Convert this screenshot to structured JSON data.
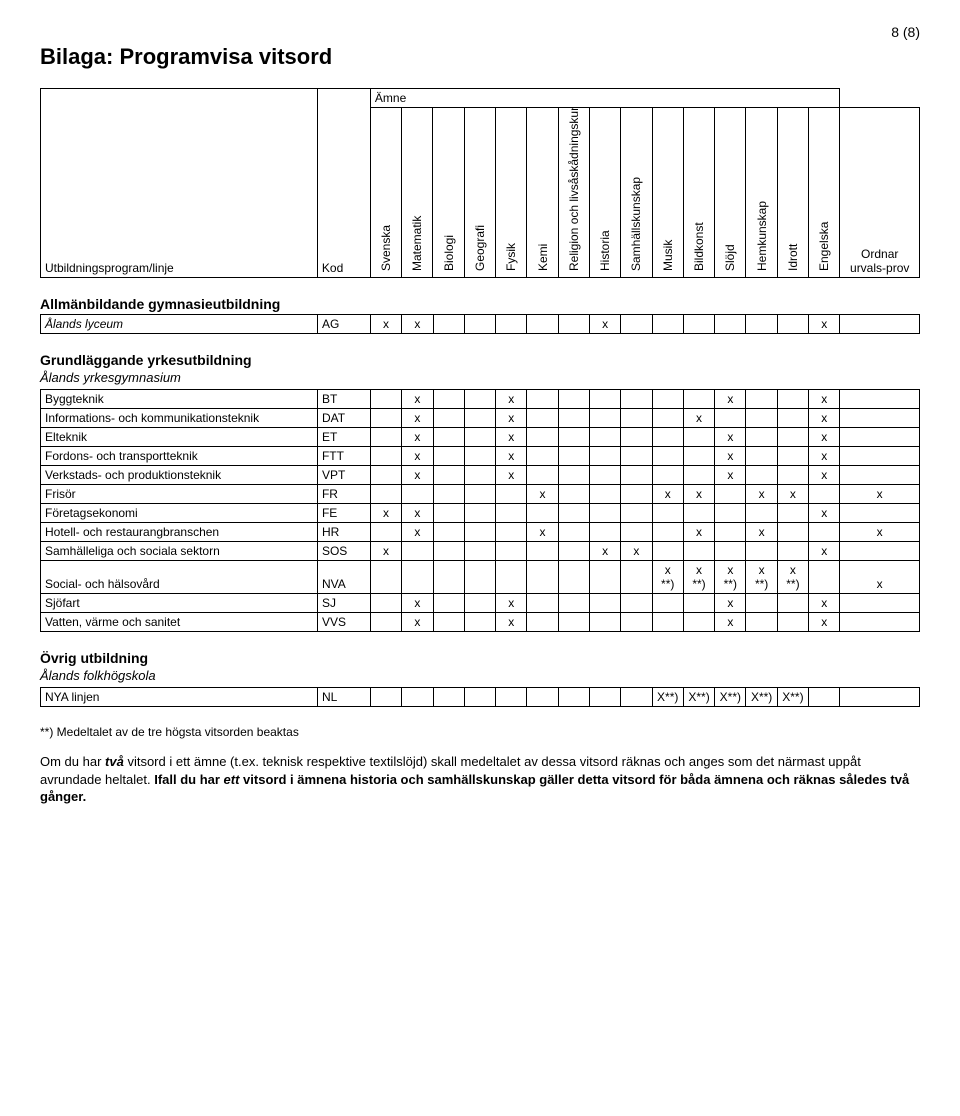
{
  "page_number": "8 (8)",
  "title": "Bilaga: Programvisa vitsord",
  "header": {
    "program_label": "Utbildningsprogram/linje",
    "kod_label": "Kod",
    "amne_label": "Ämne",
    "ordnar_label": "Ordnar urvals-prov",
    "subjects": [
      "Svenska",
      "Matematik",
      "Biologi",
      "Geografi",
      "Fysik",
      "Kemi",
      "Religion och livsåskådningskunskap",
      "Historia",
      "Samhällskunskap",
      "Musik",
      "Bildkonst",
      "Slöjd",
      "Hemkunskap",
      "Idrott",
      "Engelska"
    ]
  },
  "sections": [
    {
      "title": "Allmänbildande gymnasieutbildning",
      "subtitle": "Ålands lyceum",
      "subtitle_as_row": true,
      "rows": [
        {
          "name": "Ålands lyceum",
          "kod": "AG",
          "marks": [
            "x",
            "x",
            "",
            "",
            "",
            "",
            "",
            "x",
            "",
            "",
            "",
            "",
            "",
            "",
            "x"
          ],
          "ordnar": ""
        }
      ]
    },
    {
      "title": "Grundläggande yrkesutbildning",
      "subtitle": "Ålands yrkesgymnasium",
      "rows": [
        {
          "name": "Byggteknik",
          "kod": "BT",
          "marks": [
            "",
            "x",
            "",
            "",
            "x",
            "",
            "",
            "",
            "",
            "",
            "",
            "x",
            "",
            "",
            "x"
          ],
          "ordnar": ""
        },
        {
          "name": "Informations- och kommunikationsteknik",
          "kod": "DAT",
          "marks": [
            "",
            "x",
            "",
            "",
            "x",
            "",
            "",
            "",
            "",
            "",
            "x",
            "",
            "",
            "",
            "x"
          ],
          "ordnar": ""
        },
        {
          "name": "Elteknik",
          "kod": "ET",
          "marks": [
            "",
            "x",
            "",
            "",
            "x",
            "",
            "",
            "",
            "",
            "",
            "",
            "x",
            "",
            "",
            "x"
          ],
          "ordnar": ""
        },
        {
          "name": "Fordons- och transportteknik",
          "kod": "FTT",
          "marks": [
            "",
            "x",
            "",
            "",
            "x",
            "",
            "",
            "",
            "",
            "",
            "",
            "x",
            "",
            "",
            "x"
          ],
          "ordnar": ""
        },
        {
          "name": "Verkstads- och produktionsteknik",
          "kod": "VPT",
          "marks": [
            "",
            "x",
            "",
            "",
            "x",
            "",
            "",
            "",
            "",
            "",
            "",
            "x",
            "",
            "",
            "x"
          ],
          "ordnar": ""
        },
        {
          "name": "Frisör",
          "kod": "FR",
          "marks": [
            "",
            "",
            "",
            "",
            "",
            "x",
            "",
            "",
            "",
            "x",
            "x",
            "",
            "x",
            "x",
            ""
          ],
          "ordnar": "x"
        },
        {
          "name": "Företagsekonomi",
          "kod": "FE",
          "marks": [
            "x",
            "x",
            "",
            "",
            "",
            "",
            "",
            "",
            "",
            "",
            "",
            "",
            "",
            "",
            "x"
          ],
          "ordnar": ""
        },
        {
          "name": "Hotell- och restaurangbranschen",
          "kod": "HR",
          "marks": [
            "",
            "x",
            "",
            "",
            "",
            "x",
            "",
            "",
            "",
            "",
            "x",
            "",
            "x",
            "",
            ""
          ],
          "ordnar": "x"
        },
        {
          "name": "Samhälleliga och sociala sektorn",
          "kod": "SOS",
          "marks": [
            "x",
            "",
            "",
            "",
            "",
            "",
            "",
            "x",
            "x",
            "",
            "",
            "",
            "",
            "",
            "x"
          ],
          "ordnar": ""
        },
        {
          "name": "Social- och hälsovård",
          "kod": "NVA",
          "marks": [
            "",
            "",
            "",
            "",
            "",
            "",
            "",
            "",
            "",
            "x **)",
            "x **)",
            "x **)",
            "x **)",
            "x **)",
            ""
          ],
          "ordnar": "x"
        },
        {
          "name": "Sjöfart",
          "kod": "SJ",
          "marks": [
            "",
            "x",
            "",
            "",
            "x",
            "",
            "",
            "",
            "",
            "",
            "",
            "x",
            "",
            "",
            "x"
          ],
          "ordnar": ""
        },
        {
          "name": "Vatten, värme och sanitet",
          "kod": "VVS",
          "marks": [
            "",
            "x",
            "",
            "",
            "x",
            "",
            "",
            "",
            "",
            "",
            "",
            "x",
            "",
            "",
            "x"
          ],
          "ordnar": ""
        }
      ]
    },
    {
      "title": "Övrig utbildning",
      "subtitle": "Ålands folkhögskola",
      "rows": [
        {
          "name": "NYA linjen",
          "kod": "NL",
          "marks": [
            "",
            "",
            "",
            "",
            "",
            "",
            "",
            "",
            "",
            "X**)",
            "X**)",
            "X**)",
            "X**)",
            "X**)",
            ""
          ],
          "ordnar": ""
        }
      ]
    }
  ],
  "footnote": "**) Medeltalet av de tre högsta vitsorden beaktas",
  "para1_pre": "Om du har ",
  "para1_bi": "två",
  "para1_post": " vitsord i ett ämne (t.ex. teknisk respektive textilslöjd) skall medeltalet av dessa vitsord räknas och anges som det närmast uppåt avrundade heltalet. ",
  "para1_bold": "Ifall du har ",
  "para1_bi2": "ett",
  "para1_bold2": " vitsord i ämnena historia och samhällskunskap gäller detta vitsord för båda ämnena och räknas således två gånger."
}
